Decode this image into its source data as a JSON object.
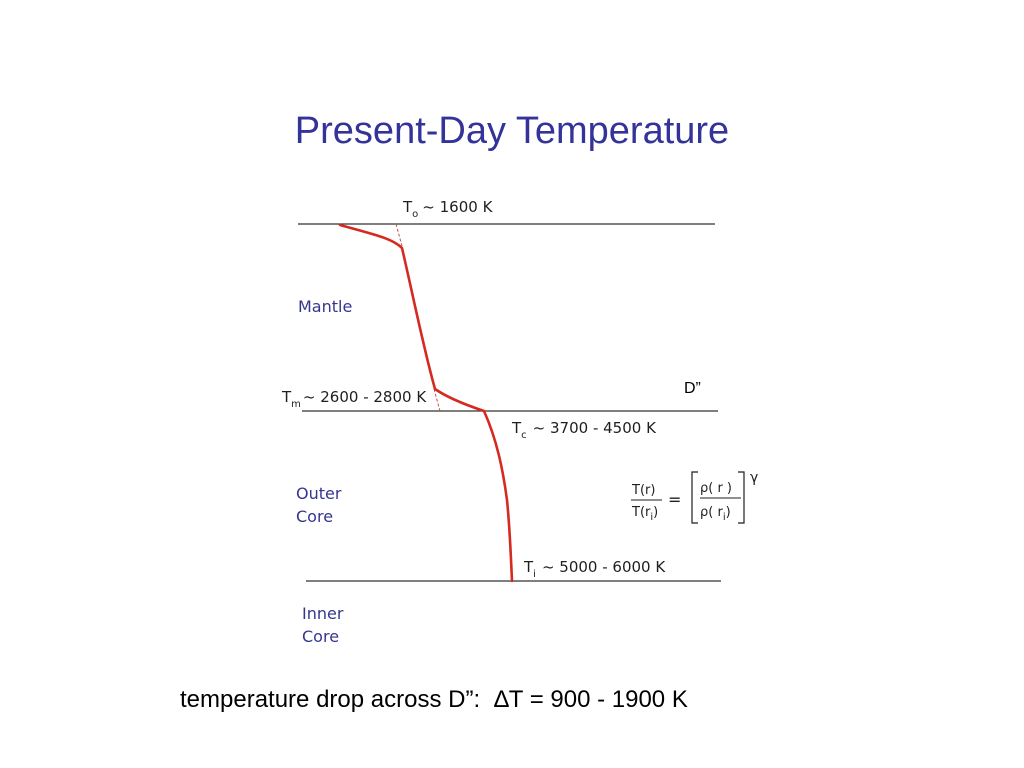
{
  "title": "Present-Day Temperature",
  "labels": {
    "surface": {
      "T": "T",
      "sub": "o",
      "rest": "~  1600 K"
    },
    "cmb_mantle": {
      "T": "T",
      "sub": "m",
      "rest": "~  2600 - 2800 K"
    },
    "cmb_core": {
      "T": "T",
      "sub": "c",
      "rest": "~  3700 - 4500 K"
    },
    "icb": {
      "T": "T",
      "sub": "i",
      "rest": "~  5000 - 6000 K"
    },
    "d_double_prime": "D”"
  },
  "regions": {
    "mantle": "Mantle",
    "outer_core_line1": "Outer",
    "outer_core_line2": "Core",
    "inner_core_line1": "Inner",
    "inner_core_line2": "Core"
  },
  "equation": {
    "lhs_num": "T(r)",
    "lhs_den_main": "T(r",
    "lhs_den_sub": "i",
    "lhs_den_close": ")",
    "equals": "=",
    "rhs_num": "ρ(  r  )",
    "rhs_den_main": "ρ(  r",
    "rhs_den_sub": "i",
    "rhs_den_close": ")",
    "exponent": "γ"
  },
  "caption": {
    "text": "temperature drop across D”:",
    "delta": "∆T = 900 - 1900 K"
  },
  "colors": {
    "title": "#333399",
    "region_text": "#35358f",
    "profile_line": "#d42a20",
    "boundary_line": "#333333"
  }
}
